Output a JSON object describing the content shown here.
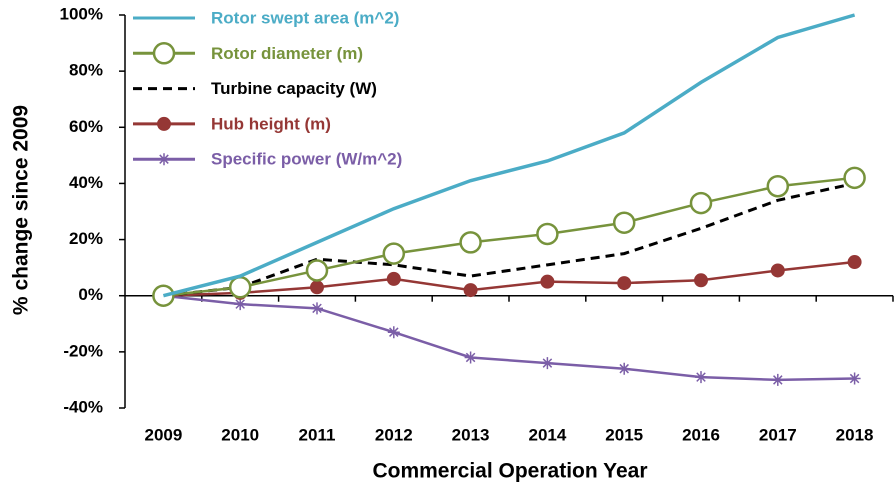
{
  "chart_data": {
    "type": "line",
    "xlabel": "Commercial Operation Year",
    "ylabel": "% change since 2009",
    "categories": [
      "2009",
      "2010",
      "2011",
      "2012",
      "2013",
      "2014",
      "2015",
      "2016",
      "2017",
      "2018"
    ],
    "ylim": [
      -40,
      100
    ],
    "yticks": [
      {
        "value": -40,
        "label": "-40%"
      },
      {
        "value": -20,
        "label": "-20%"
      },
      {
        "value": 0,
        "label": "0%"
      },
      {
        "value": 20,
        "label": "20%"
      },
      {
        "value": 40,
        "label": "40%"
      },
      {
        "value": 60,
        "label": "60%"
      },
      {
        "value": 80,
        "label": "80%"
      },
      {
        "value": 100,
        "label": "100%"
      }
    ],
    "legend": "upper left",
    "series": [
      {
        "name": "Rotor swept area (m^2)",
        "color": "#4bacc6",
        "marker": "none",
        "dashed": false,
        "values": [
          0,
          7,
          19,
          31,
          41,
          48,
          58,
          76,
          92,
          100
        ]
      },
      {
        "name": "Rotor diameter (m)",
        "color": "#77933c",
        "marker": "open-circle",
        "dashed": false,
        "values": [
          0,
          3,
          9,
          15,
          19,
          22,
          26,
          33,
          39,
          42
        ]
      },
      {
        "name": "Turbine capacity (W)",
        "color": "#000000",
        "marker": "none",
        "dashed": true,
        "values": [
          0,
          3,
          13,
          11,
          7,
          11,
          15,
          24,
          34,
          40
        ]
      },
      {
        "name": "Hub height (m)",
        "color": "#953735",
        "marker": "filled-circle",
        "dashed": false,
        "values": [
          0,
          1,
          3,
          6,
          2,
          5,
          4.5,
          5.5,
          9,
          12
        ]
      },
      {
        "name": "Specific power (W/m^2)",
        "color": "#7b5ea7",
        "marker": "asterisk",
        "dashed": false,
        "values": [
          0,
          -3,
          -4.5,
          -13,
          -22,
          -24,
          -26,
          -29,
          -30,
          -29.5
        ]
      }
    ]
  }
}
